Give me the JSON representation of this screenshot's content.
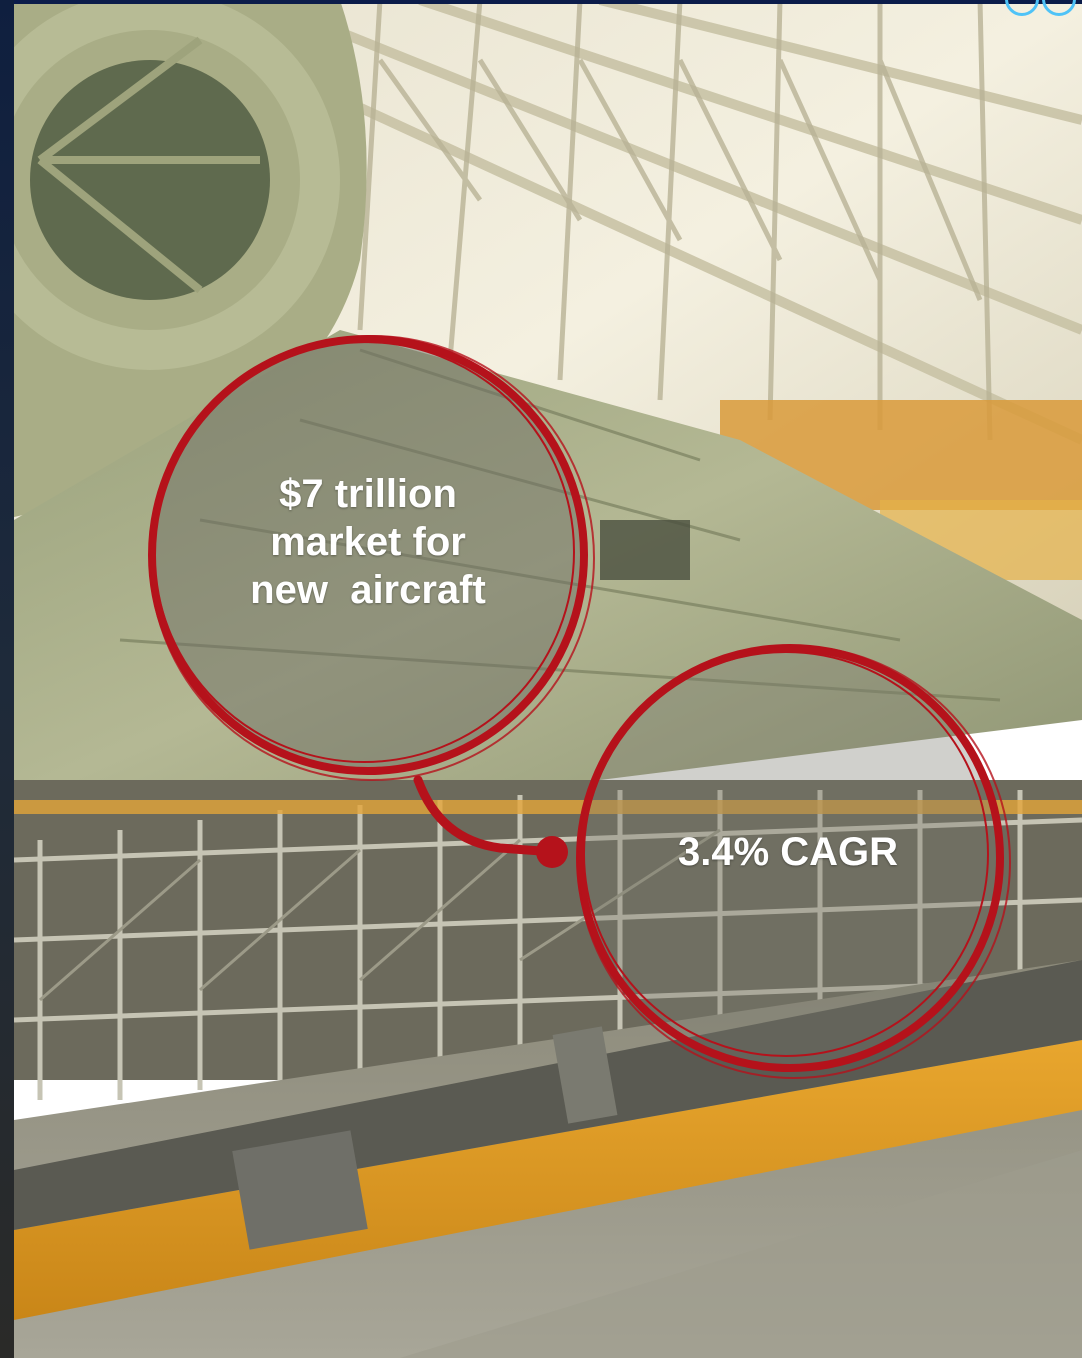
{
  "circle_primary": {
    "line1": "$7 trillion",
    "line2": "market for",
    "line3": "new  aircraft"
  },
  "circle_secondary": {
    "label": "3.4% CAGR"
  },
  "colors": {
    "accent_red": "#b5121b",
    "overlay": "rgba(110,110,100,0.45)",
    "top_bar": "#0b1c4a",
    "corner_ring": "#4fc3f7"
  }
}
